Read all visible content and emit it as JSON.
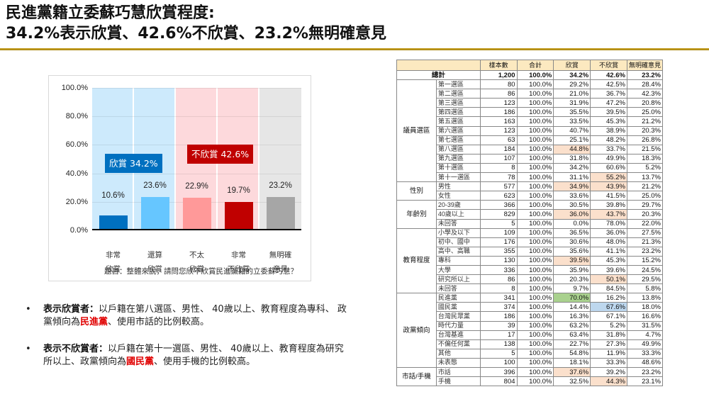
{
  "header": {
    "title_line1": "民進黨籍立委蘇巧慧欣賞程度:",
    "title_line2": "34.2%表示欣賞、42.6%不欣賞、23.2%無明確意見"
  },
  "chart_data": {
    "type": "bar",
    "title": "",
    "categories": [
      "非常欣賞",
      "還算欣賞",
      "不太欣賞",
      "非常不欣賞",
      "無明確意見"
    ],
    "category_lines": [
      [
        "非常",
        "欣賞"
      ],
      [
        "還算",
        "欣賞"
      ],
      [
        "不太",
        "欣賞"
      ],
      [
        "非常",
        "不欣賞"
      ],
      [
        "無明確",
        "意見"
      ]
    ],
    "values": [
      10.6,
      23.6,
      22.9,
      19.7,
      23.2
    ],
    "value_labels": [
      "10.6%",
      "23.6%",
      "22.9%",
      "19.7%",
      "23.2%"
    ],
    "bar_colors": [
      "#0070c0",
      "#66c6ff",
      "#ff9999",
      "#c00000",
      "#a6a6a6"
    ],
    "band_colors": [
      "#cdeafc",
      "#cdeafc",
      "#fdd9dc",
      "#fdd9dc",
      "#e6e6e6"
    ],
    "yticks": [
      "0.0%",
      "20.0%",
      "40.0%",
      "60.0%",
      "80.0%",
      "100.0%"
    ],
    "ylim": [
      0,
      100
    ],
    "xlabel": "題目：整體來說，請問您欣不欣賞民進黨籍的立委蘇巧慧？",
    "ylabel": "",
    "grid": true,
    "annotations": [
      {
        "label": "欣賞 34.2%",
        "color": "#0070c0",
        "group": "欣賞",
        "value": 34.2
      },
      {
        "label": "不欣賞 42.6%",
        "color": "#c00000",
        "group": "不欣賞",
        "value": 42.6
      }
    ]
  },
  "bullets": [
    {
      "label": "表示欣賞者：",
      "text_before": "以戶籍在第八選區、男性、 40歲以上、教育程度為專科、 政黨傾向為",
      "highlight": "民進黨",
      "text_after": "、使用市話的比例較高。"
    },
    {
      "label": "表示不欣賞者：",
      "text_before": "以戶籍在第十一選區、男性、 40歲以上、教育程度為研究所以上、政黨傾向為",
      "highlight": "國民黨",
      "text_after": "、使用手機的比例較高。"
    }
  ],
  "table": {
    "headers": [
      "",
      "樣本數",
      "合計",
      "欣賞",
      "不欣賞",
      "無明確意見"
    ],
    "total": {
      "label": "總計",
      "n": "1,200",
      "sum": "100.0%",
      "like": "34.2%",
      "dislike": "42.6%",
      "none": "23.2%"
    },
    "groups": [
      {
        "name": "議員選區",
        "rows": [
          {
            "label": "第一選區",
            "n": "80",
            "sum": "100.0%",
            "like": "29.2%",
            "dislike": "42.5%",
            "none": "28.4%"
          },
          {
            "label": "第二選區",
            "n": "86",
            "sum": "100.0%",
            "like": "21.0%",
            "dislike": "36.7%",
            "none": "42.3%"
          },
          {
            "label": "第三選區",
            "n": "123",
            "sum": "100.0%",
            "like": "31.9%",
            "dislike": "47.2%",
            "none": "20.8%"
          },
          {
            "label": "第四選區",
            "n": "186",
            "sum": "100.0%",
            "like": "35.5%",
            "dislike": "39.5%",
            "none": "25.0%"
          },
          {
            "label": "第五選區",
            "n": "163",
            "sum": "100.0%",
            "like": "33.5%",
            "dislike": "45.3%",
            "none": "21.2%"
          },
          {
            "label": "第六選區",
            "n": "123",
            "sum": "100.0%",
            "like": "40.7%",
            "dislike": "38.9%",
            "none": "20.3%"
          },
          {
            "label": "第七選區",
            "n": "63",
            "sum": "100.0%",
            "like": "25.1%",
            "dislike": "48.2%",
            "none": "26.8%"
          },
          {
            "label": "第八選區",
            "n": "184",
            "sum": "100.0%",
            "like": "44.8%",
            "dislike": "33.7%",
            "none": "21.5%",
            "hl_like": "o"
          },
          {
            "label": "第九選區",
            "n": "107",
            "sum": "100.0%",
            "like": "31.8%",
            "dislike": "49.9%",
            "none": "18.3%"
          },
          {
            "label": "第十選區",
            "n": "8",
            "sum": "100.0%",
            "like": "34.2%",
            "dislike": "60.6%",
            "none": "5.2%"
          },
          {
            "label": "第十一選區",
            "n": "78",
            "sum": "100.0%",
            "like": "31.1%",
            "dislike": "55.2%",
            "none": "13.7%",
            "hl_dislike": "o"
          }
        ]
      },
      {
        "name": "性別",
        "rows": [
          {
            "label": "男性",
            "n": "577",
            "sum": "100.0%",
            "like": "34.9%",
            "dislike": "43.9%",
            "none": "21.2%",
            "hl_like": "o",
            "hl_dislike": "o"
          },
          {
            "label": "女性",
            "n": "623",
            "sum": "100.0%",
            "like": "33.6%",
            "dislike": "41.5%",
            "none": "25.0%"
          }
        ]
      },
      {
        "name": "年齡別",
        "rows": [
          {
            "label": "20-39歲",
            "n": "366",
            "sum": "100.0%",
            "like": "30.5%",
            "dislike": "39.8%",
            "none": "29.7%"
          },
          {
            "label": "40歲以上",
            "n": "829",
            "sum": "100.0%",
            "like": "36.0%",
            "dislike": "43.7%",
            "none": "20.3%",
            "hl_like": "o",
            "hl_dislike": "o"
          },
          {
            "label": "未回答",
            "n": "5",
            "sum": "100.0%",
            "like": "0.0%",
            "dislike": "78.0%",
            "none": "22.0%"
          }
        ]
      },
      {
        "name": "教育程度",
        "rows": [
          {
            "label": "小學及以下",
            "n": "109",
            "sum": "100.0%",
            "like": "36.5%",
            "dislike": "36.0%",
            "none": "27.5%"
          },
          {
            "label": "初中、國中",
            "n": "176",
            "sum": "100.0%",
            "like": "30.6%",
            "dislike": "48.0%",
            "none": "21.3%"
          },
          {
            "label": "高中、高職",
            "n": "355",
            "sum": "100.0%",
            "like": "35.6%",
            "dislike": "41.1%",
            "none": "23.2%"
          },
          {
            "label": "專科",
            "n": "130",
            "sum": "100.0%",
            "like": "39.5%",
            "dislike": "45.3%",
            "none": "15.2%",
            "hl_like": "o"
          },
          {
            "label": "大學",
            "n": "336",
            "sum": "100.0%",
            "like": "35.9%",
            "dislike": "39.6%",
            "none": "24.5%"
          },
          {
            "label": "研究所以上",
            "n": "86",
            "sum": "100.0%",
            "like": "20.3%",
            "dislike": "50.1%",
            "none": "29.5%",
            "hl_dislike": "o"
          },
          {
            "label": "未回答",
            "n": "8",
            "sum": "100.0%",
            "like": "9.7%",
            "dislike": "84.5%",
            "none": "5.8%"
          }
        ]
      },
      {
        "name": "政黨傾向",
        "rows": [
          {
            "label": "民進黨",
            "n": "341",
            "sum": "100.0%",
            "like": "70.0%",
            "dislike": "16.2%",
            "none": "13.8%",
            "hl_like": "g"
          },
          {
            "label": "國民黨",
            "n": "374",
            "sum": "100.0%",
            "like": "14.4%",
            "dislike": "67.6%",
            "none": "18.0%",
            "hl_dislike": "b"
          },
          {
            "label": "台灣民眾黨",
            "n": "186",
            "sum": "100.0%",
            "like": "16.3%",
            "dislike": "67.1%",
            "none": "16.6%"
          },
          {
            "label": "時代力量",
            "n": "39",
            "sum": "100.0%",
            "like": "63.2%",
            "dislike": "5.2%",
            "none": "31.5%"
          },
          {
            "label": "台灣基進",
            "n": "17",
            "sum": "100.0%",
            "like": "63.4%",
            "dislike": "31.8%",
            "none": "4.7%"
          },
          {
            "label": "不偏任何黨",
            "n": "138",
            "sum": "100.0%",
            "like": "22.7%",
            "dislike": "27.3%",
            "none": "49.9%"
          },
          {
            "label": "其他",
            "n": "5",
            "sum": "100.0%",
            "like": "54.8%",
            "dislike": "11.9%",
            "none": "33.3%"
          },
          {
            "label": "未表態",
            "n": "100",
            "sum": "100.0%",
            "like": "18.1%",
            "dislike": "33.3%",
            "none": "48.6%"
          }
        ]
      },
      {
        "name": "市話/手機",
        "rows": [
          {
            "label": "市話",
            "n": "396",
            "sum": "100.0%",
            "like": "37.6%",
            "dislike": "39.2%",
            "none": "23.2%",
            "hl_like": "o"
          },
          {
            "label": "手機",
            "n": "804",
            "sum": "100.0%",
            "like": "32.5%",
            "dislike": "44.3%",
            "none": "23.1%",
            "hl_dislike": "o"
          }
        ]
      }
    ]
  }
}
